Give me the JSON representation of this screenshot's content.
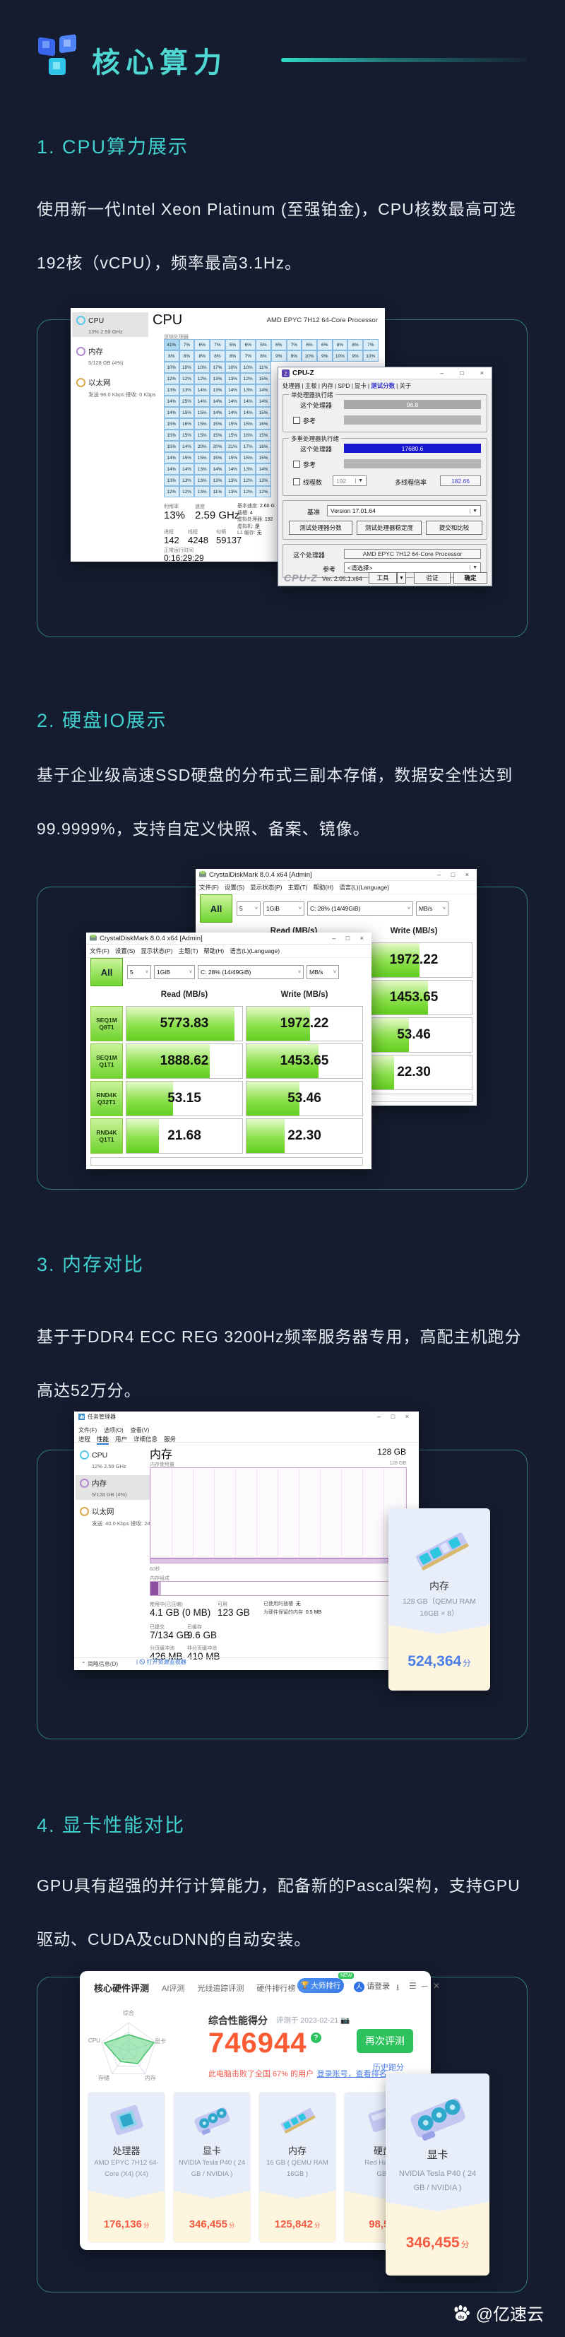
{
  "header": {
    "title": "核心算力"
  },
  "footer": {
    "credit": "@亿速云"
  },
  "sections": {
    "s1": {
      "title": "1. CPU算力展示",
      "desc": "使用新一代Intel Xeon Platinum (至强铂金)，CPU核数最高可选192核（vCPU），频率最高3.1Hz。"
    },
    "s2": {
      "title": "2. 硬盘IO展示",
      "desc": "基于企业级高速SSD硬盘的分布式三副本存储，数据安全性达到99.9999%，支持自定义快照、备案、镜像。"
    },
    "s3": {
      "title": "3. 内存对比",
      "desc": "基于于DDR4 ECC REG 3200Hz频率服务器专用，高配主机跑分高达52万分。"
    },
    "s4": {
      "title": "4. 显卡性能对比",
      "desc": "GPU具有超强的并行计算能力，配备新的Pascal架构，支持GPU驱动、CUDA及cuDNN的自动安装。"
    }
  },
  "taskmgr_cpu": {
    "sidebar": [
      {
        "name": "CPU",
        "sub": "13% 2.59 GHz",
        "color": "#58c8e8",
        "selected": true
      },
      {
        "name": "内存",
        "sub": "5/128 GB (4%)",
        "color": "#b08ad0",
        "selected": false
      },
      {
        "name": "以太网",
        "sub": "发送 96.0 Kbps 接收: 0 Kbps",
        "color": "#d8a84a",
        "selected": false
      }
    ],
    "header": "CPU",
    "model": "AMD EPYC 7H12 64-Core Processor",
    "grid_label": "逻辑处理器",
    "grid_rows": [
      [
        "41%",
        "7%",
        "6%",
        "7%",
        "5%",
        "6%",
        "5%",
        "6%",
        "7%",
        "6%",
        "6%",
        "8%",
        "8%",
        "7%"
      ],
      [
        "8%",
        "8%",
        "8%",
        "8%",
        "8%",
        "7%",
        "8%",
        "9%",
        "9%",
        "10%",
        "9%",
        "10%",
        "9%",
        "10%"
      ],
      [
        "10%",
        "10%",
        "10%",
        "17%",
        "10%",
        "10%",
        "11%"
      ],
      [
        "12%",
        "12%",
        "12%",
        "13%",
        "13%",
        "12%",
        "15%"
      ],
      [
        "13%",
        "13%",
        "14%",
        "13%",
        "14%",
        "13%",
        "14%"
      ],
      [
        "14%",
        "25%",
        "14%",
        "14%",
        "14%",
        "14%",
        "14%"
      ],
      [
        "14%",
        "15%",
        "15%",
        "14%",
        "14%",
        "14%",
        "15%"
      ],
      [
        "15%",
        "16%",
        "15%",
        "15%",
        "15%",
        "15%",
        "16%"
      ],
      [
        "15%",
        "15%",
        "15%",
        "15%",
        "15%",
        "16%",
        "15%"
      ],
      [
        "15%",
        "14%",
        "20%",
        "20%",
        "21%",
        "17%",
        "16%"
      ],
      [
        "14%",
        "15%",
        "15%",
        "15%",
        "15%",
        "15%",
        "15%"
      ],
      [
        "14%",
        "14%",
        "13%",
        "14%",
        "14%",
        "13%",
        "14%"
      ],
      [
        "13%",
        "13%",
        "13%",
        "13%",
        "13%",
        "12%",
        "13%"
      ],
      [
        "12%",
        "12%",
        "13%",
        "11%",
        "13%",
        "12%",
        "12%"
      ]
    ],
    "stats_a": [
      {
        "label": "利用率",
        "value": "13%"
      },
      {
        "label": "速度",
        "value": "2.59 GHz"
      }
    ],
    "stats_b": [
      {
        "label": "进程",
        "value": "142"
      },
      {
        "label": "线程",
        "value": "4248"
      },
      {
        "label": "句柄",
        "value": "59137"
      }
    ],
    "uptime_label": "正常运行时间",
    "uptime": "0:16:29:29",
    "stats_r": [
      {
        "label": "基本速度:",
        "value": "2.60 G"
      },
      {
        "label": "插槽:",
        "value": "4"
      },
      {
        "label": "虚拟处理器:",
        "value": "192"
      },
      {
        "label": "虚拟机:",
        "value": "是"
      },
      {
        "label": "L1 缓存:",
        "value": "无"
      }
    ]
  },
  "cpuz": {
    "title": "CPU-Z",
    "tabs": [
      "处理器",
      "主板",
      "内存",
      "SPD",
      "显卡",
      "测试分数",
      "关于"
    ],
    "active_tab": "测试分数",
    "group1": "单处理器执行绪",
    "row_label": "这个处理器",
    "single_score": "96.8",
    "ref_label": "参考",
    "group2": "多重处理器执行绪",
    "multi_score": "17680.6",
    "threads_label": "线程数",
    "threads": "192",
    "ratio_label": "多线程倍率",
    "ratio": "182.66",
    "bench_label": "基准",
    "bench_version": "Version 17.01.64",
    "buttons": [
      "测试处理器分数",
      "测试处理器稳定度",
      "提交和比较"
    ],
    "cpu_label": "这个处理器",
    "cpu": "AMD EPYC 7H12 64-Core Processor",
    "ref_value": "<请选择>",
    "brand": "CPU-Z",
    "version": "Ver. 2.05.1.x64",
    "tool_btn": "工具",
    "footer_buttons": [
      "验证",
      "确定"
    ]
  },
  "cdm": {
    "title": "CrystalDiskMark 8.0.4 x64 [Admin]",
    "menus": [
      "文件(F)",
      "设置(S)",
      "显示状态(P)",
      "主题(T)",
      "帮助(H)",
      "语言(L)(Language)"
    ],
    "all_label": "All",
    "count": "5",
    "size": "1GiB",
    "drive": "C: 28% (14/49GiB)",
    "unit": "MB/s",
    "read_header": "Read (MB/s)",
    "write_header": "Write (MB/s)",
    "rows": [
      {
        "l1": "SEQ1M",
        "l2": "Q8T1",
        "read": "5773.83",
        "write": "1972.22",
        "rf": 93,
        "wf": 55
      },
      {
        "l1": "SEQ1M",
        "l2": "Q1T1",
        "read": "1888.62",
        "write": "1453.65",
        "rf": 72,
        "wf": 62
      },
      {
        "l1": "RND4K",
        "l2": "Q32T1",
        "read": "53.15",
        "write": "53.46",
        "rf": 40,
        "wf": 46
      },
      {
        "l1": "RND4K",
        "l2": "Q1T1",
        "read": "21.68",
        "write": "22.30",
        "rf": 28,
        "wf": 33
      }
    ],
    "back_writes": [
      {
        "value": "1972.22",
        "fill": 55
      },
      {
        "value": "1453.65",
        "fill": 62
      },
      {
        "value": "53.46",
        "fill": 46
      },
      {
        "value": "22.30",
        "fill": 33
      }
    ]
  },
  "taskmgr_mem": {
    "title": "任务管理器",
    "menus": [
      "文件(F)",
      "选项(O)",
      "查看(V)"
    ],
    "tabs": [
      "进程",
      "性能",
      "用户",
      "详细信息",
      "服务"
    ],
    "active_tab": "性能",
    "sidebar": [
      {
        "name": "CPU",
        "sub": "12% 2.59 GHz",
        "color": "#58c8e8",
        "selected": false
      },
      {
        "name": "内存",
        "sub": "5/128 GB (4%)",
        "color": "#b08ad0",
        "selected": true
      },
      {
        "name": "以太网",
        "sub": "发送: 40.0 Kbps 接收: 24.0 Kb",
        "color": "#d8a84a",
        "selected": false
      }
    ],
    "header": "内存",
    "total": "128 GB",
    "usage_label": "内存使用量",
    "usage_max": "128 GB",
    "time_label": "60秒",
    "comp_label": "内存组成",
    "stats_row1": [
      {
        "label": "使用中(已压缩)",
        "value": "4.1 GB (0 MB)"
      },
      {
        "label": "可用",
        "value": "123 GB"
      }
    ],
    "stats_row2": [
      {
        "label": "已提交",
        "value": "7/134 GB"
      },
      {
        "label": "已缓存",
        "value": "9.6 GB"
      }
    ],
    "stats_row3": [
      {
        "label": "分页缓冲池",
        "value": "426 MB"
      },
      {
        "label": "非分页缓冲池",
        "value": "410 MB"
      }
    ],
    "stats_r": [
      {
        "label": "已使用的插槽",
        "value": "无"
      },
      {
        "label": "为硬件保留的内存",
        "value": "0.5 MB"
      }
    ],
    "footer_left": "简略信息(D)",
    "footer_link": "打开资源监视器"
  },
  "mem_card": {
    "name": "内存",
    "desc1": "128 GB（QEMU RAM",
    "desc2": "16GB × 8）",
    "score": "524,364",
    "unit": "分",
    "score_color": "#4a7fe8"
  },
  "bench": {
    "nav": [
      "核心硬件评测",
      "AI评测",
      "光线追踪评测",
      "硬件排行榜"
    ],
    "badge": "大师排行",
    "badge_tag": "NEW",
    "login": "请登录",
    "radar_labels": [
      "综合",
      "CPU",
      "显卡",
      "存储",
      "内存"
    ],
    "score_label": "综合性能得分",
    "date": "评测于 2023-02-21",
    "score": "746944",
    "beat": "此电脑击败了全国 67% 的用户",
    "beat_link": "登录账号，查看排名",
    "btn": "再次评测",
    "history": "历史跑分",
    "cards": [
      {
        "name": "处理器",
        "d1": "AMD EPYC 7H12 64-",
        "d2": "Core (X4) (X4)",
        "score": "176,136",
        "unit": "分",
        "icon": "cpu"
      },
      {
        "name": "显卡",
        "d1": "NVIDIA Tesla P40 ( 24",
        "d2": "GB / NVIDIA )",
        "score": "346,455",
        "unit": "分",
        "icon": "gpu"
      },
      {
        "name": "内存",
        "d1": "16 GB ( QEMU RAM",
        "d2": "16GB )",
        "score": "125,842",
        "unit": "分",
        "icon": "ram"
      },
      {
        "name": "硬盘",
        "d1": "Red Hat Virt",
        "d2": "GB)",
        "score": "98,51",
        "unit": "",
        "icon": "disk"
      }
    ],
    "overlay": {
      "name": "显卡",
      "d1": "NVIDIA Tesla P40 ( 24",
      "d2": "GB / NVIDIA )",
      "score": "346,455",
      "unit": "分",
      "icon": "gpu"
    }
  }
}
